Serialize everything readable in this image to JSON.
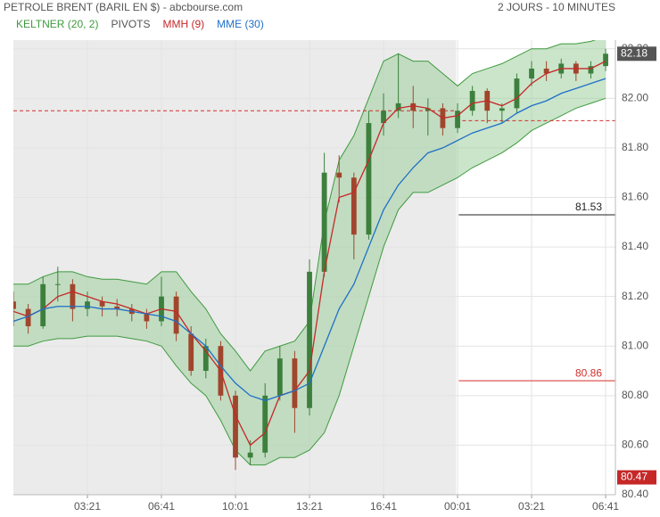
{
  "chart_data": {
    "type": "candlestick",
    "title": "PETROLE BRENT (BARIL EN $) - abcbourse.com",
    "subtitle": "2 JOURS - 10 MINUTES",
    "up_color": "#3d7f3d",
    "down_color": "#a0462d",
    "ylim": [
      80.4,
      82.235
    ],
    "xlim": [
      0,
      40.66
    ],
    "session_break": 29.9,
    "yticks": [
      {
        "value": 80.4,
        "label": "80.40"
      },
      {
        "value": 80.6,
        "label": "80.60"
      },
      {
        "value": 80.8,
        "label": "80.80"
      },
      {
        "value": 81.0,
        "label": "81.00"
      },
      {
        "value": 81.2,
        "label": "81.20"
      },
      {
        "value": 81.4,
        "label": "81.40"
      },
      {
        "value": 81.6,
        "label": "81.60"
      },
      {
        "value": 81.8,
        "label": "81.80"
      },
      {
        "value": 82.0,
        "label": "82.00"
      },
      {
        "value": 82.2,
        "label": "82.20"
      }
    ],
    "xticks": [
      {
        "value": 5,
        "label": "03:21"
      },
      {
        "value": 10,
        "label": "06:41"
      },
      {
        "value": 15,
        "label": "10:01"
      },
      {
        "value": 20,
        "label": "13:21"
      },
      {
        "value": 25,
        "label": "16:41"
      },
      {
        "value": 30,
        "label": "00:01"
      },
      {
        "value": 35,
        "label": "03:21"
      },
      {
        "value": 40,
        "label": "06:41"
      }
    ],
    "open": [
      81.18,
      81.15,
      81.08,
      81.25,
      81.25,
      81.15,
      81.18,
      81.16,
      81.15,
      81.13,
      81.1,
      81.2,
      81.05,
      80.9,
      81.0,
      80.8,
      80.55,
      80.57,
      80.8,
      80.95,
      80.75,
      81.3,
      81.7,
      81.68,
      81.45,
      81.9,
      81.95,
      81.98,
      81.95,
      81.96,
      81.88,
      81.95,
      82.03,
      81.95,
      81.96,
      82.08,
      82.12,
      82.1,
      82.14,
      82.1,
      82.13
    ],
    "high": [
      81.22,
      81.17,
      81.28,
      81.32,
      81.27,
      81.22,
      81.2,
      81.19,
      81.17,
      81.15,
      81.28,
      81.22,
      81.08,
      81.03,
      81.02,
      80.82,
      80.62,
      80.85,
      81.0,
      80.98,
      81.35,
      81.78,
      81.77,
      81.7,
      81.95,
      82.02,
      82.18,
      82.05,
      82.0,
      81.98,
      81.98,
      82.05,
      82.04,
      81.98,
      82.1,
      82.15,
      82.15,
      82.16,
      82.15,
      82.15,
      82.2
    ],
    "low": [
      81.08,
      81.05,
      81.07,
      81.18,
      81.1,
      81.12,
      81.12,
      81.12,
      81.1,
      81.07,
      81.08,
      81.02,
      80.88,
      80.87,
      80.78,
      80.5,
      80.52,
      80.55,
      80.78,
      80.65,
      80.72,
      81.28,
      81.58,
      81.35,
      81.43,
      81.85,
      81.92,
      81.88,
      81.85,
      81.85,
      81.86,
      81.93,
      81.9,
      81.9,
      81.94,
      82.05,
      82.07,
      82.08,
      82.07,
      82.08,
      82.11
    ],
    "close": [
      81.15,
      81.08,
      81.25,
      81.25,
      81.15,
      81.18,
      81.16,
      81.15,
      81.13,
      81.1,
      81.2,
      81.05,
      80.9,
      81.0,
      80.8,
      80.55,
      80.57,
      80.8,
      80.95,
      80.75,
      81.3,
      81.7,
      81.68,
      81.45,
      81.9,
      81.95,
      81.98,
      81.95,
      81.96,
      81.88,
      81.95,
      82.03,
      81.95,
      81.96,
      82.08,
      82.12,
      82.1,
      82.14,
      82.1,
      82.13,
      82.18
    ],
    "keltner": {
      "name": "KELTNER (20, 2)",
      "color": "#3f9a3f",
      "fill": "#9fd09f",
      "upper": [
        81.25,
        81.25,
        81.28,
        81.3,
        81.3,
        81.28,
        81.27,
        81.27,
        81.26,
        81.25,
        81.3,
        81.3,
        81.22,
        81.15,
        81.05,
        80.98,
        80.9,
        80.98,
        81.0,
        81.02,
        81.1,
        81.5,
        81.75,
        81.85,
        82.0,
        82.15,
        82.18,
        82.15,
        82.15,
        82.1,
        82.05,
        82.1,
        82.12,
        82.14,
        82.17,
        82.2,
        82.2,
        82.22,
        82.22,
        82.23,
        82.25
      ],
      "lower": [
        81.0,
        81.0,
        81.02,
        81.03,
        81.03,
        81.04,
        81.04,
        81.04,
        81.03,
        81.02,
        81.0,
        80.92,
        80.85,
        80.8,
        80.7,
        80.58,
        80.52,
        80.52,
        80.55,
        80.55,
        80.58,
        80.65,
        80.8,
        81.0,
        81.2,
        81.4,
        81.55,
        81.62,
        81.62,
        81.65,
        81.68,
        81.72,
        81.75,
        81.78,
        81.82,
        81.87,
        81.9,
        81.93,
        81.96,
        81.98,
        82.0
      ]
    },
    "pivots": {
      "name": "PIVOTS",
      "color": "#d32f2f",
      "values": [
        81.95,
        81.91
      ]
    },
    "series": [
      {
        "name": "MMH (9)",
        "color": "#c62828",
        "values": [
          81.14,
          81.12,
          81.15,
          81.2,
          81.22,
          81.2,
          81.18,
          81.17,
          81.15,
          81.13,
          81.15,
          81.14,
          81.05,
          80.98,
          80.9,
          80.72,
          80.6,
          80.65,
          80.8,
          80.82,
          80.9,
          81.3,
          81.6,
          81.62,
          81.75,
          81.9,
          81.96,
          81.97,
          81.96,
          81.92,
          81.93,
          81.98,
          81.99,
          81.97,
          82.0,
          82.06,
          82.1,
          82.12,
          82.12,
          82.12,
          82.15
        ]
      },
      {
        "name": "MME (30)",
        "color": "#1e6fc8",
        "values": [
          81.1,
          81.12,
          81.15,
          81.16,
          81.16,
          81.16,
          81.15,
          81.15,
          81.14,
          81.13,
          81.12,
          81.1,
          81.05,
          81.0,
          80.92,
          80.85,
          80.8,
          80.78,
          80.8,
          80.82,
          80.85,
          81.0,
          81.15,
          81.25,
          81.4,
          81.55,
          81.65,
          81.72,
          81.78,
          81.8,
          81.83,
          81.86,
          81.88,
          81.9,
          81.94,
          81.97,
          81.99,
          82.02,
          82.04,
          82.06,
          82.08
        ]
      }
    ],
    "levels": [
      {
        "value": 81.53,
        "color": "#222"
      },
      {
        "value": 80.86,
        "color": "#d32f2f"
      }
    ],
    "badges": [
      {
        "value": 82.18,
        "color": "#555"
      },
      {
        "value": 80.47,
        "color": "#c62828"
      }
    ]
  }
}
